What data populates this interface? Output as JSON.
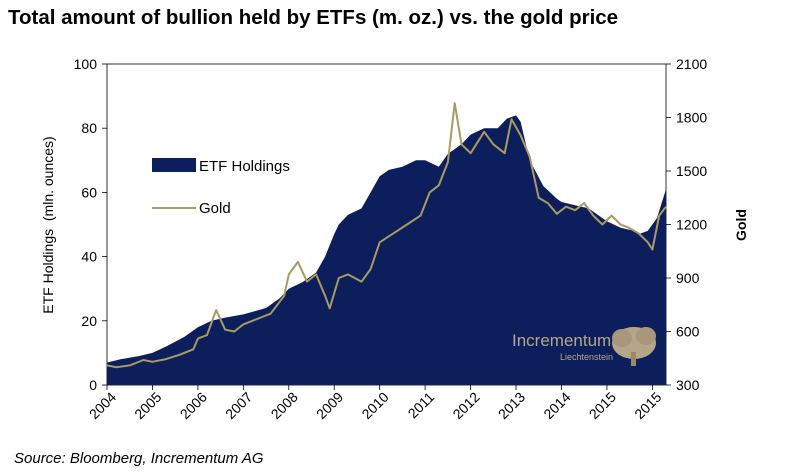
{
  "title": "Total amount of bullion held by ETFs (m. oz.) vs. the gold price",
  "source": "Source: Bloomberg, Incrementum AG",
  "watermark": {
    "name": "Incrementum",
    "sub": "Liechtenstein"
  },
  "colors": {
    "etf_fill": "#0c1f5c",
    "gold_line": "#a99a63",
    "watermark": "#c9b58e"
  },
  "chart_data": {
    "type": "area",
    "xlabel": "",
    "ylabel_left": "ETF Holdings  (mln. ounces)",
    "ylabel_right": "Gold",
    "ylim_left": [
      0,
      100
    ],
    "ylim_right": [
      300,
      2100
    ],
    "y_ticks_left": [
      "0",
      "20",
      "40",
      "60",
      "80",
      "100"
    ],
    "y_ticks_right": [
      "300",
      "600",
      "900",
      "1200",
      "1500",
      "1800",
      "2100"
    ],
    "x_ticks": [
      "2004",
      "2005",
      "2006",
      "2007",
      "2008",
      "2009",
      "2010",
      "2011",
      "2012",
      "2013",
      "2014",
      "2015",
      "2015"
    ],
    "legend": {
      "placement": "upper-left",
      "entries": [
        "ETF Holdings",
        "Gold"
      ]
    },
    "grid": false,
    "series": [
      {
        "name": "ETF Holdings",
        "type": "area",
        "axis": "left",
        "x": [
          2004.0,
          2004.3,
          2004.7,
          2005.0,
          2005.3,
          2005.7,
          2006.0,
          2006.3,
          2006.6,
          2007.0,
          2007.5,
          2007.8,
          2008.0,
          2008.3,
          2008.6,
          2008.8,
          2009.0,
          2009.1,
          2009.3,
          2009.6,
          2009.8,
          2010.0,
          2010.2,
          2010.5,
          2010.8,
          2011.0,
          2011.3,
          2011.5,
          2011.8,
          2012.0,
          2012.3,
          2012.6,
          2012.8,
          2013.0,
          2013.1,
          2013.3,
          2013.6,
          2013.9,
          2014.0,
          2014.3,
          2014.6,
          2014.9,
          2015.0,
          2015.3,
          2015.6,
          2015.7,
          2015.9,
          2016.1,
          2016.3
        ],
        "values": [
          7,
          8,
          9,
          10,
          12,
          15,
          18,
          20,
          21,
          22,
          24,
          27,
          30,
          32,
          35,
          40,
          47,
          50,
          53,
          55,
          60,
          65,
          67,
          68,
          70,
          70,
          68,
          72,
          75,
          78,
          80,
          80,
          83,
          84,
          82,
          70,
          62,
          58,
          57,
          56,
          55,
          52,
          51,
          49,
          48,
          47,
          48,
          52,
          61
        ]
      },
      {
        "name": "Gold",
        "type": "line",
        "axis": "right",
        "x": [
          2004.0,
          2004.2,
          2004.5,
          2004.8,
          2005.0,
          2005.3,
          2005.6,
          2005.9,
          2006.0,
          2006.2,
          2006.4,
          2006.6,
          2006.8,
          2007.0,
          2007.3,
          2007.6,
          2007.9,
          2008.0,
          2008.2,
          2008.4,
          2008.6,
          2008.8,
          2008.9,
          2009.1,
          2009.3,
          2009.6,
          2009.8,
          2010.0,
          2010.3,
          2010.6,
          2010.9,
          2011.1,
          2011.3,
          2011.5,
          2011.65,
          2011.8,
          2012.0,
          2012.3,
          2012.5,
          2012.75,
          2012.9,
          2013.1,
          2013.3,
          2013.5,
          2013.7,
          2013.9,
          2014.1,
          2014.3,
          2014.5,
          2014.7,
          2014.9,
          2015.1,
          2015.3,
          2015.5,
          2015.7,
          2015.9,
          2016.0,
          2016.15,
          2016.3
        ],
        "values": [
          410,
          400,
          410,
          440,
          430,
          445,
          470,
          500,
          560,
          580,
          720,
          610,
          600,
          640,
          670,
          700,
          800,
          920,
          990,
          880,
          920,
          800,
          730,
          900,
          920,
          880,
          950,
          1100,
          1150,
          1200,
          1250,
          1380,
          1420,
          1550,
          1880,
          1650,
          1600,
          1720,
          1650,
          1600,
          1790,
          1700,
          1580,
          1350,
          1320,
          1260,
          1300,
          1280,
          1320,
          1250,
          1200,
          1250,
          1200,
          1180,
          1150,
          1100,
          1060,
          1250,
          1300
        ]
      }
    ]
  }
}
